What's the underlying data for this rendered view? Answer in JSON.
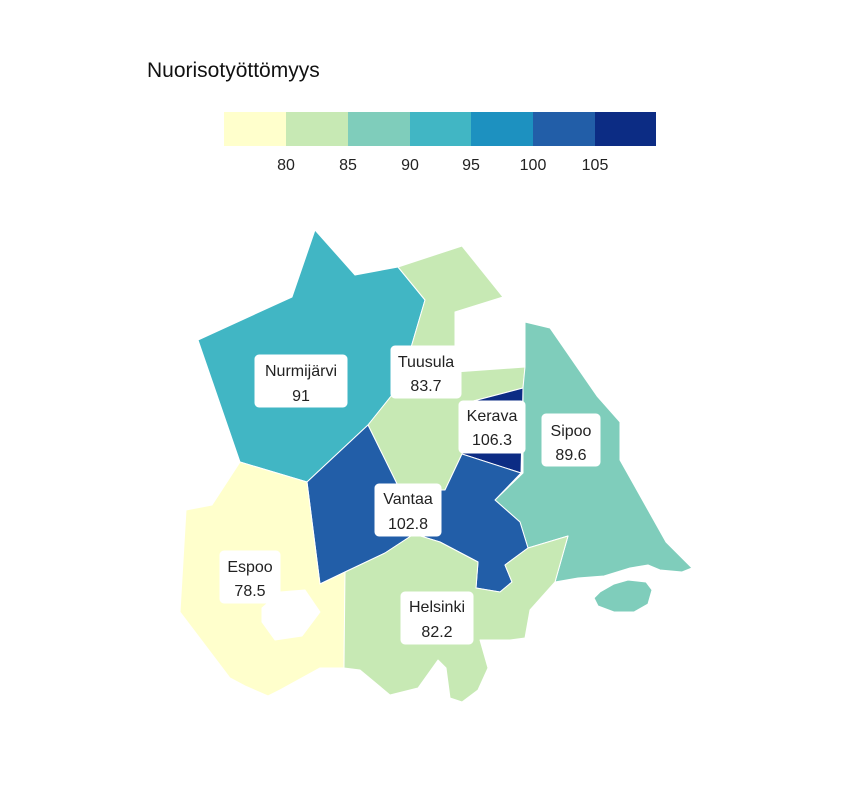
{
  "title": "Nuorisotyöttömyys",
  "legend": {
    "ticks": [
      "80",
      "85",
      "90",
      "95",
      "100",
      "105"
    ],
    "colors": [
      "#ffffcc",
      "#c7e9b4",
      "#7fcdbb",
      "#41b6c4",
      "#1d91c0",
      "#225ea8",
      "#0c2c84"
    ]
  },
  "chart_data": {
    "type": "choropleth",
    "title": "Nuorisotyöttömyys",
    "scale_breaks": [
      80,
      85,
      90,
      95,
      100,
      105
    ],
    "regions": [
      {
        "name": "Nurmijärvi",
        "value": 91,
        "value_label": "91",
        "color": "#41b6c4"
      },
      {
        "name": "Tuusula",
        "value": 83.7,
        "value_label": "83.7",
        "color": "#c7e9b4"
      },
      {
        "name": "Kerava",
        "value": 106.3,
        "value_label": "106.3",
        "color": "#0c2c84"
      },
      {
        "name": "Sipoo",
        "value": 89.6,
        "value_label": "89.6",
        "color": "#7fcdbb"
      },
      {
        "name": "Vantaa",
        "value": 102.8,
        "value_label": "102.8",
        "color": "#225ea8"
      },
      {
        "name": "Espoo",
        "value": 78.5,
        "value_label": "78.5",
        "color": "#ffffcc"
      },
      {
        "name": "Helsinki",
        "value": 82.2,
        "value_label": "82.2",
        "color": "#c7e9b4"
      }
    ]
  }
}
